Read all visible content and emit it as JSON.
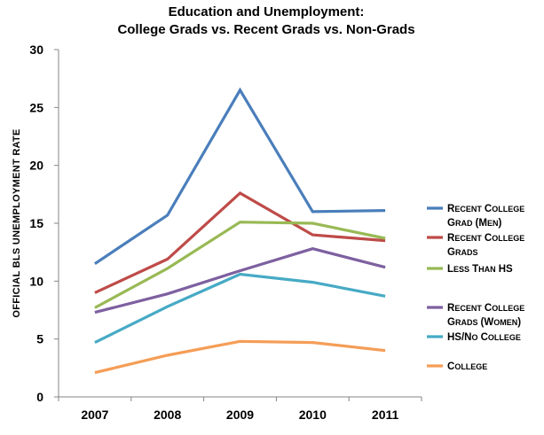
{
  "chart_data": {
    "type": "line",
    "title": [
      "Education and Unemployment:",
      "College Grads vs. Recent Grads vs. Non-Grads"
    ],
    "ylabel": "OFFICIAL BLS UNEMPLOYMENT RATE",
    "xlabel": "",
    "categories": [
      "2007",
      "2008",
      "2009",
      "2010",
      "2011"
    ],
    "ylim": [
      0,
      30
    ],
    "yticks": [
      0,
      5,
      10,
      15,
      20,
      25,
      30
    ],
    "grid": false,
    "legend_position": "right",
    "series": [
      {
        "name": "Recent College Grad (Men)",
        "legend_lines": [
          "Recent College",
          "Grad (Men)"
        ],
        "color": "#4a7ebb",
        "values": [
          11.5,
          15.7,
          26.5,
          16.0,
          16.1
        ]
      },
      {
        "name": "Recent College Grads",
        "legend_lines": [
          "Recent College",
          "Grads"
        ],
        "color": "#be4b48",
        "values": [
          9.0,
          11.9,
          17.6,
          14.0,
          13.5
        ]
      },
      {
        "name": "Less Than HS",
        "legend_lines": [
          "Less Than HS"
        ],
        "color": "#98b954",
        "values": [
          7.7,
          11.1,
          15.1,
          15.0,
          13.7
        ]
      },
      {
        "name": "Recent College Grads (Women)",
        "legend_lines": [
          "Recent College",
          "Grads (Women)"
        ],
        "color": "#7d60a0",
        "values": [
          7.3,
          8.9,
          10.9,
          12.8,
          11.2
        ]
      },
      {
        "name": "HS/No College",
        "legend_lines": [
          "HS/No College"
        ],
        "color": "#46aac5",
        "values": [
          4.7,
          7.8,
          10.6,
          9.9,
          8.7
        ]
      },
      {
        "name": "College",
        "legend_lines": [
          "College"
        ],
        "color": "#f59d56",
        "values": [
          2.1,
          3.6,
          4.8,
          4.7,
          4.0
        ]
      }
    ]
  }
}
